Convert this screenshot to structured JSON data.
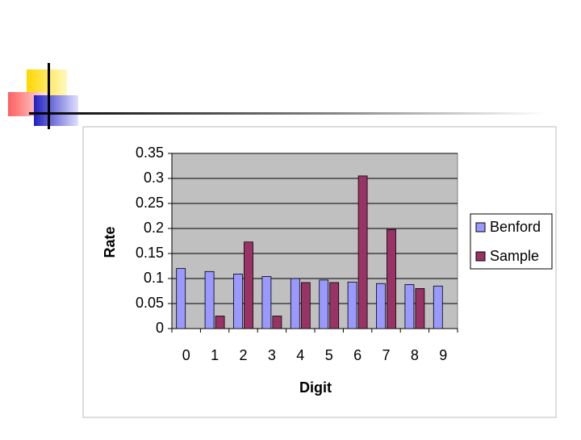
{
  "chart_data": {
    "type": "bar",
    "x_label": "Digit",
    "y_label": "Rate",
    "categories": [
      "0",
      "1",
      "2",
      "3",
      "4",
      "5",
      "6",
      "7",
      "8",
      "9"
    ],
    "series": [
      {
        "name": "Benford",
        "color": "#9999ff",
        "values": [
          0.12,
          0.114,
          0.109,
          0.104,
          0.1,
          0.097,
          0.093,
          0.09,
          0.088,
          0.085
        ]
      },
      {
        "name": "Sample",
        "color": "#993366",
        "values": [
          0,
          0.025,
          0.173,
          0.025,
          0.092,
          0.092,
          0.305,
          0.198,
          0.08,
          0
        ]
      }
    ],
    "ylim": [
      0,
      0.35
    ],
    "yticks": [
      0,
      0.05,
      0.1,
      0.15,
      0.2,
      0.25,
      0.3,
      0.35
    ],
    "grid": true,
    "legend": "right"
  }
}
